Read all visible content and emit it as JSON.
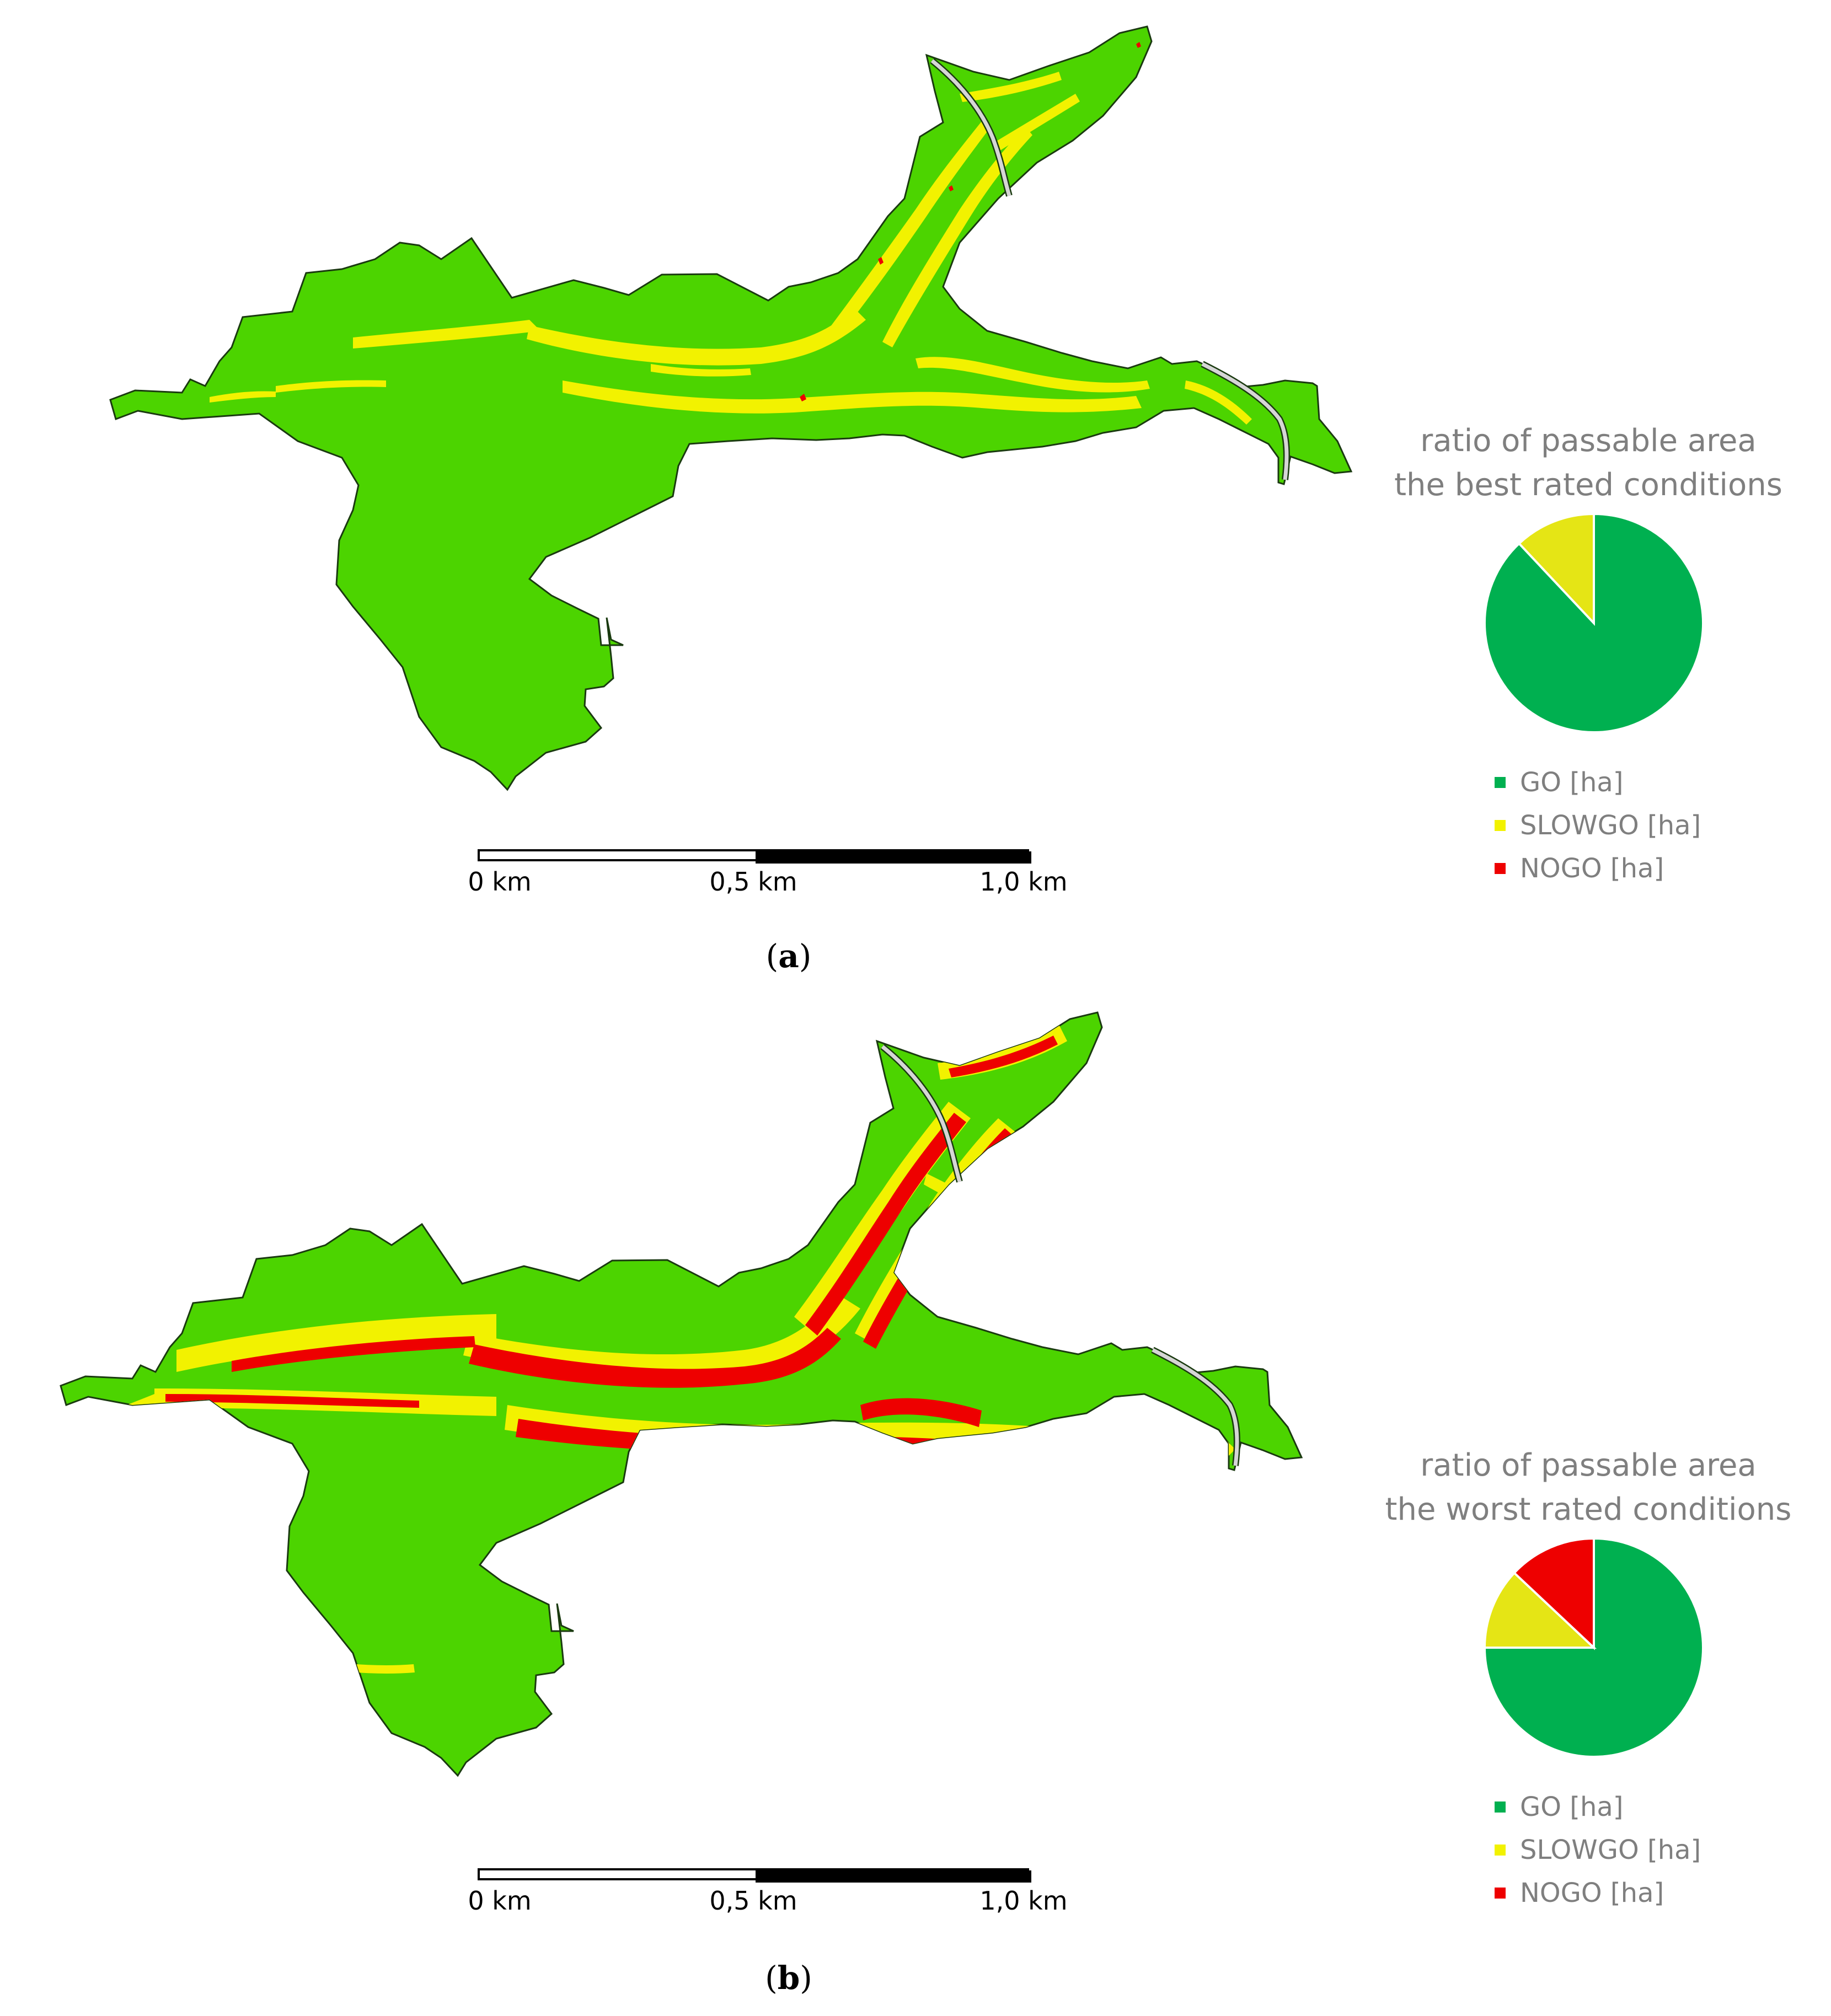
{
  "colors": {
    "go_map": "#4cd400",
    "slowgo_map": "#f2f200",
    "nogo_map": "#ee0000",
    "go_pie": "#00b050",
    "slowgo_pie": "#e5e515",
    "nogo_pie": "#ee0000",
    "outline": "#1a3a10",
    "road": "#d6d6d6"
  },
  "panels": [
    {
      "caption_letter": "a",
      "chart_data": {
        "type": "pie",
        "title_line1": "ratio of passable area",
        "title_line2": "the best rated conditions",
        "labels": [
          "GO [ha]",
          "SLOWGO [ha]",
          "NOGO [ha]"
        ],
        "values": [
          88,
          12,
          0
        ]
      },
      "scale_labels": [
        "0 km",
        "0,5 km",
        "1,0 km"
      ]
    },
    {
      "caption_letter": "b",
      "chart_data": {
        "type": "pie",
        "title_line1": "ratio of passable area",
        "title_line2": "the worst rated conditions",
        "labels": [
          "GO [ha]",
          "SLOWGO [ha]",
          "NOGO [ha]"
        ],
        "values": [
          75,
          12,
          13
        ]
      },
      "scale_labels": [
        "0 km",
        "0,5 km",
        "1,0 km"
      ]
    }
  ]
}
